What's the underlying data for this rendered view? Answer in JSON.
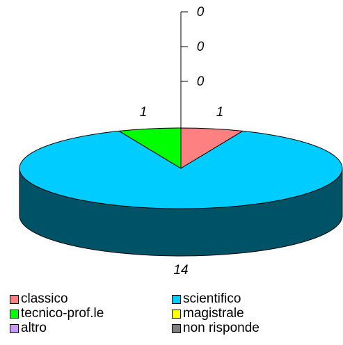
{
  "chart_data": {
    "type": "pie",
    "three_d": true,
    "title": "",
    "slices": [
      {
        "label": "classico",
        "value": 1,
        "value_label": "1",
        "color": "#ff8080"
      },
      {
        "label": "scientifico",
        "value": 14,
        "value_label": "14",
        "color": "#00ccff"
      },
      {
        "label": "tecnico-prof.le",
        "value": 1,
        "value_label": "1",
        "color": "#00ff00"
      },
      {
        "label": "magistrale",
        "value": 0,
        "value_label": "0",
        "color": "#ffff00"
      },
      {
        "label": "altro",
        "value": 0,
        "value_label": "0",
        "color": "#cc99ff"
      },
      {
        "label": "non risponde",
        "value": 0,
        "value_label": "0",
        "color": "#808080"
      }
    ],
    "legend_position": "bottom"
  }
}
